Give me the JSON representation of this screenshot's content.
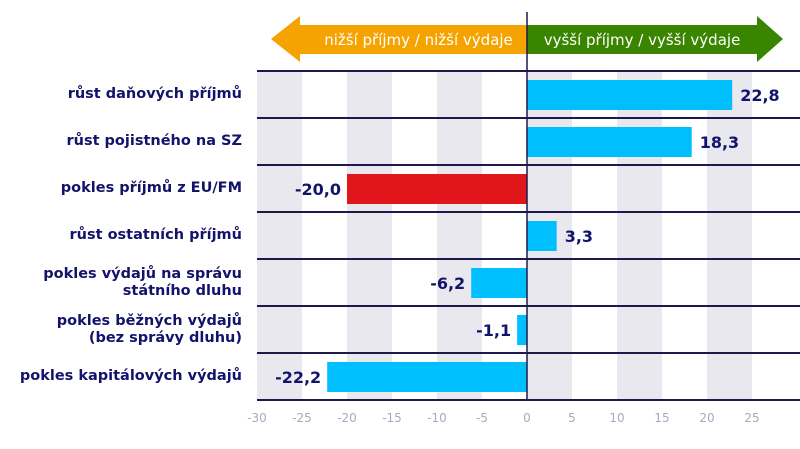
{
  "chart_data": {
    "type": "bar",
    "orientation": "horizontal",
    "categories": [
      "růst daňových příjmů",
      "růst pojistného na SZ",
      "pokles příjmů z EU/FM",
      "růst ostatních příjmů",
      "pokles výdajů na správu státního dluhu",
      "pokles běžných výdajů (bez správy dluhu)",
      "pokles kapitálových výdajů"
    ],
    "category_lines": [
      [
        "růst daňových příjmů"
      ],
      [
        "růst pojistného na SZ"
      ],
      [
        "pokles příjmů z EU/FM"
      ],
      [
        "růst ostatních příjmů"
      ],
      [
        "pokles výdajů na správu",
        "státního dluhu"
      ],
      [
        "pokles běžných výdajů",
        "(bez správy dluhu)"
      ],
      [
        "pokles kapitálových výdajů"
      ]
    ],
    "values": [
      22.8,
      18.3,
      -20.0,
      3.3,
      -6.2,
      -1.1,
      -22.2
    ],
    "data_labels": [
      "22,8",
      "18,3",
      "-20,0",
      "3,3",
      "-6,2",
      "-1,1",
      "-22,2"
    ],
    "bar_colors": [
      "#00bfff",
      "#00bfff",
      "#e0161b",
      "#00bfff",
      "#00bfff",
      "#00bfff",
      "#00bfff"
    ],
    "xlim": [
      -30,
      30
    ],
    "x_ticks": [
      -30,
      -25,
      -20,
      -15,
      -10,
      -5,
      0,
      5,
      10,
      15,
      20,
      25
    ],
    "grid": "alternating vertical bands",
    "annotations": {
      "left_arrow": {
        "text": "nižší příjmy / nižší výdaje",
        "color": "#f5a300"
      },
      "right_arrow": {
        "text": "vyšší příjmy / vyšší výdaje",
        "color": "#3a8500"
      }
    },
    "colors": {
      "axis": "#1c1a4a",
      "band": "#e8e8ee",
      "label": "#13136b",
      "tick": "#a9a9c2"
    }
  }
}
